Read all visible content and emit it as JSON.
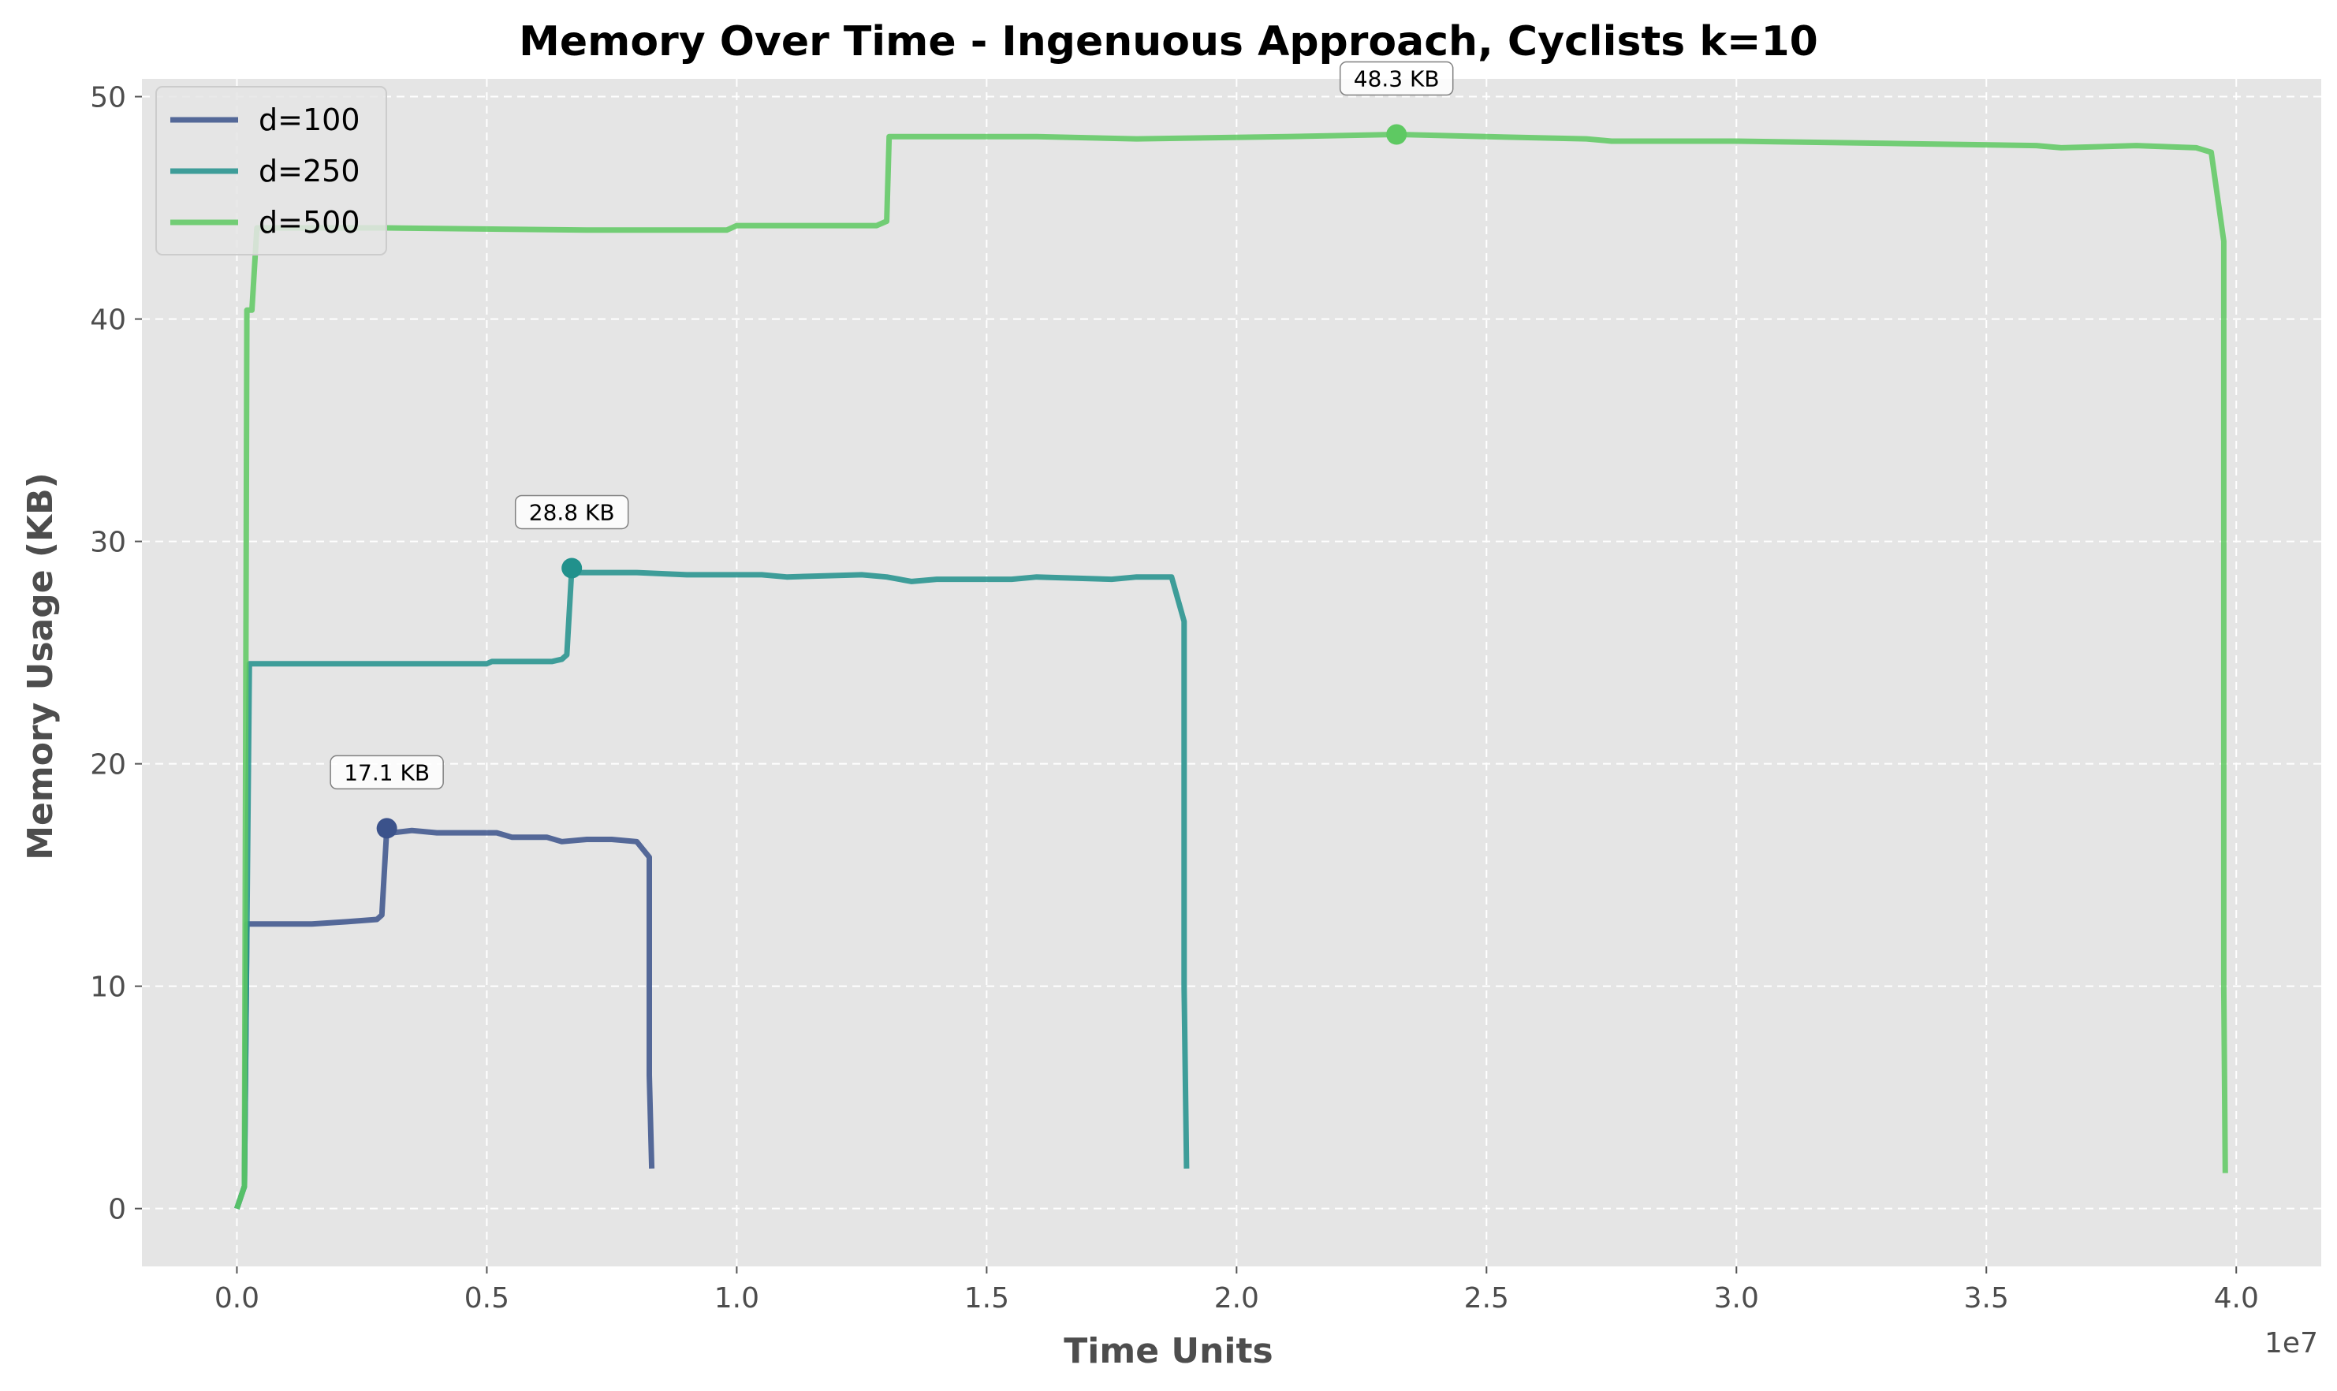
{
  "chart_data": {
    "type": "line",
    "title": "Memory Over Time - Ingenuous Approach, Cyclists k=10",
    "xlabel": "Time Units",
    "ylabel": "Memory Usage (KB)",
    "x_scale_label": "1e7",
    "xlim": [
      -1900000,
      41700000
    ],
    "ylim": [
      -2.6,
      50.8
    ],
    "x_ticks": [
      0,
      5000000,
      10000000,
      15000000,
      20000000,
      25000000,
      30000000,
      35000000,
      40000000
    ],
    "x_tick_labels": [
      "0.0",
      "0.5",
      "1.0",
      "1.5",
      "2.0",
      "2.5",
      "3.0",
      "3.5",
      "4.0"
    ],
    "y_ticks": [
      0,
      10,
      20,
      30,
      40,
      50
    ],
    "y_tick_labels": [
      "0",
      "10",
      "20",
      "30",
      "40",
      "50"
    ],
    "grid": true,
    "legend_position": "top-left",
    "series": [
      {
        "name": "d=100",
        "color": "#3b528b",
        "points": [
          [
            0,
            0
          ],
          [
            150000,
            1.0
          ],
          [
            200000,
            12.8
          ],
          [
            1500000,
            12.8
          ],
          [
            2200000,
            12.9
          ],
          [
            2800000,
            13.0
          ],
          [
            2900000,
            13.2
          ],
          [
            3000000,
            17.1
          ],
          [
            3100000,
            16.9
          ],
          [
            3500000,
            17.0
          ],
          [
            4000000,
            16.9
          ],
          [
            4800000,
            16.9
          ],
          [
            5200000,
            16.9
          ],
          [
            5500000,
            16.7
          ],
          [
            6200000,
            16.7
          ],
          [
            6500000,
            16.5
          ],
          [
            7000000,
            16.6
          ],
          [
            7500000,
            16.6
          ],
          [
            8000000,
            16.5
          ],
          [
            8250000,
            15.8
          ],
          [
            8250000,
            6.0
          ],
          [
            8300000,
            1.8
          ]
        ]
      },
      {
        "name": "d=250",
        "color": "#21918c",
        "points": [
          [
            0,
            0
          ],
          [
            150000,
            1.0
          ],
          [
            250000,
            24.5
          ],
          [
            3000000,
            24.5
          ],
          [
            5000000,
            24.5
          ],
          [
            5100000,
            24.6
          ],
          [
            6300000,
            24.6
          ],
          [
            6500000,
            24.7
          ],
          [
            6600000,
            24.9
          ],
          [
            6700000,
            28.8
          ],
          [
            6800000,
            28.6
          ],
          [
            8000000,
            28.6
          ],
          [
            9000000,
            28.5
          ],
          [
            10500000,
            28.5
          ],
          [
            11000000,
            28.4
          ],
          [
            12500000,
            28.5
          ],
          [
            13000000,
            28.4
          ],
          [
            13500000,
            28.2
          ],
          [
            14000000,
            28.3
          ],
          [
            15500000,
            28.3
          ],
          [
            16000000,
            28.4
          ],
          [
            17500000,
            28.3
          ],
          [
            18000000,
            28.4
          ],
          [
            18700000,
            28.4
          ],
          [
            18950000,
            26.4
          ],
          [
            18950000,
            10.0
          ],
          [
            19000000,
            1.8
          ]
        ]
      },
      {
        "name": "d=500",
        "color": "#5ec962",
        "points": [
          [
            0,
            0
          ],
          [
            150000,
            1.0
          ],
          [
            200000,
            40.4
          ],
          [
            300000,
            40.4
          ],
          [
            400000,
            44.1
          ],
          [
            3000000,
            44.1
          ],
          [
            7000000,
            44.0
          ],
          [
            9800000,
            44.0
          ],
          [
            10000000,
            44.2
          ],
          [
            12800000,
            44.2
          ],
          [
            13000000,
            44.4
          ],
          [
            13050000,
            48.2
          ],
          [
            15500000,
            48.2
          ],
          [
            16000000,
            48.2
          ],
          [
            18000000,
            48.1
          ],
          [
            21000000,
            48.2
          ],
          [
            23200000,
            48.3
          ],
          [
            25000000,
            48.2
          ],
          [
            27000000,
            48.1
          ],
          [
            27500000,
            48.0
          ],
          [
            30000000,
            48.0
          ],
          [
            33000000,
            47.9
          ],
          [
            36000000,
            47.8
          ],
          [
            36500000,
            47.7
          ],
          [
            38000000,
            47.8
          ],
          [
            39200000,
            47.7
          ],
          [
            39500000,
            47.5
          ],
          [
            39750000,
            43.5
          ],
          [
            39750000,
            10.0
          ],
          [
            39780000,
            1.6
          ]
        ]
      }
    ],
    "annotations": [
      {
        "series": "d=100",
        "x": 3000000,
        "y": 17.1,
        "text": "17.1 KB"
      },
      {
        "series": "d=250",
        "x": 6700000,
        "y": 28.8,
        "text": "28.8 KB"
      },
      {
        "series": "d=500",
        "x": 23200000,
        "y": 48.3,
        "text": "48.3 KB"
      }
    ],
    "style": {
      "plot_background": "#e5e5e5",
      "grid_color": "#ffffff"
    }
  }
}
